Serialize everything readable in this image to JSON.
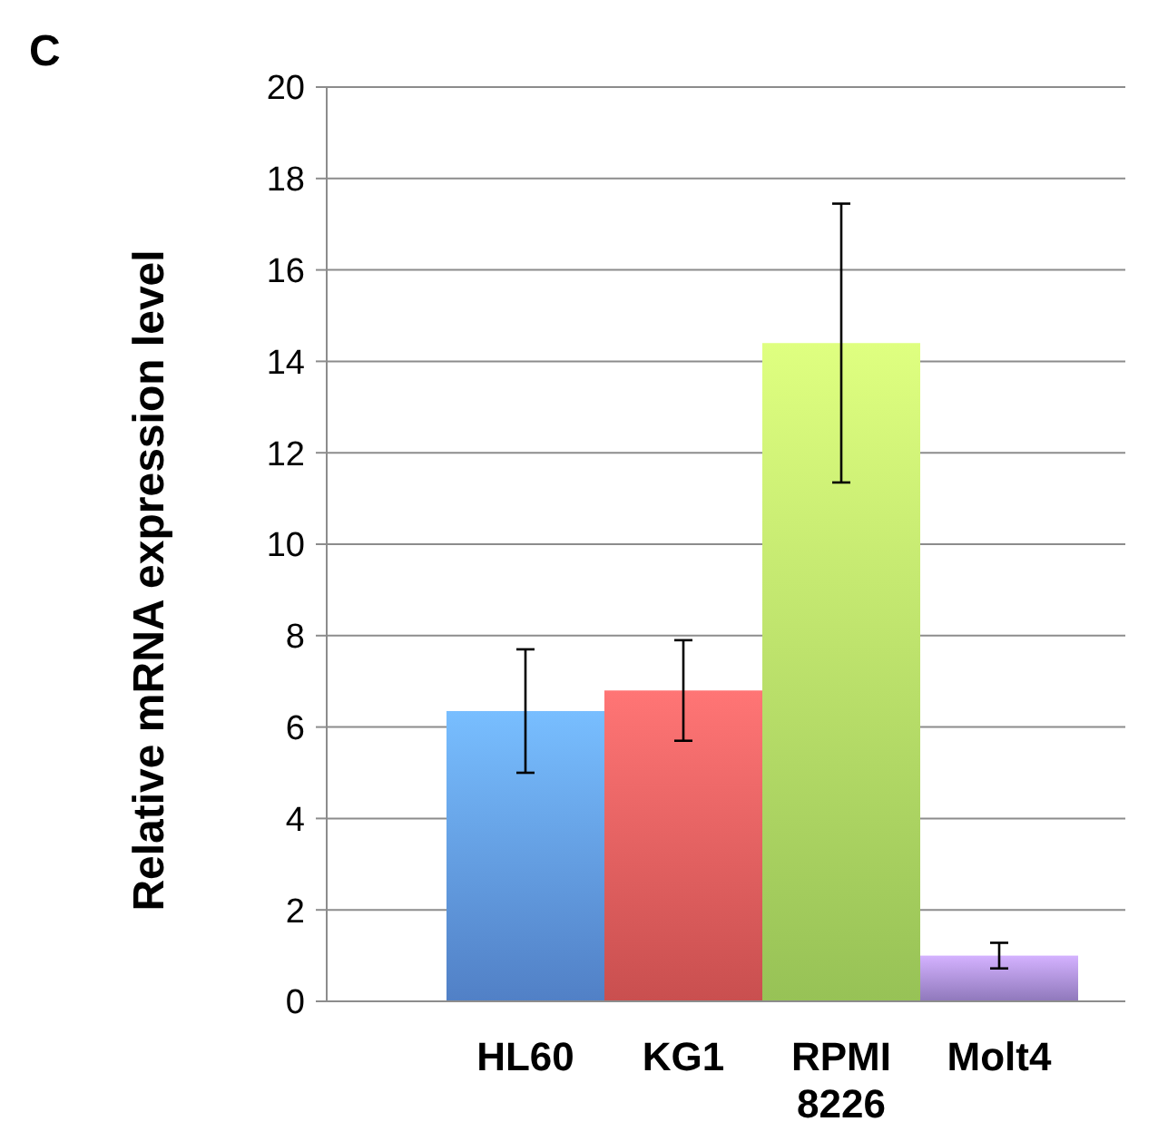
{
  "chart_data": {
    "type": "bar",
    "ylabel": "Relative mRNA expression level",
    "annotations": [
      "C"
    ],
    "categories": [
      "HL60",
      "KG1",
      "RPMI 8226",
      "Molt4"
    ],
    "values": [
      6.35,
      6.8,
      14.4,
      1.0
    ],
    "colors": [
      "#5a8fdc",
      "#e05858",
      "#a8d860",
      "#9f86d0"
    ],
    "errors": [
      1.35,
      1.1,
      3.05,
      0.28
    ],
    "ylim": [
      0,
      20
    ],
    "yticks": [
      0,
      2,
      4,
      6,
      8,
      10,
      12,
      14,
      16,
      18,
      20
    ],
    "grid": "y"
  }
}
